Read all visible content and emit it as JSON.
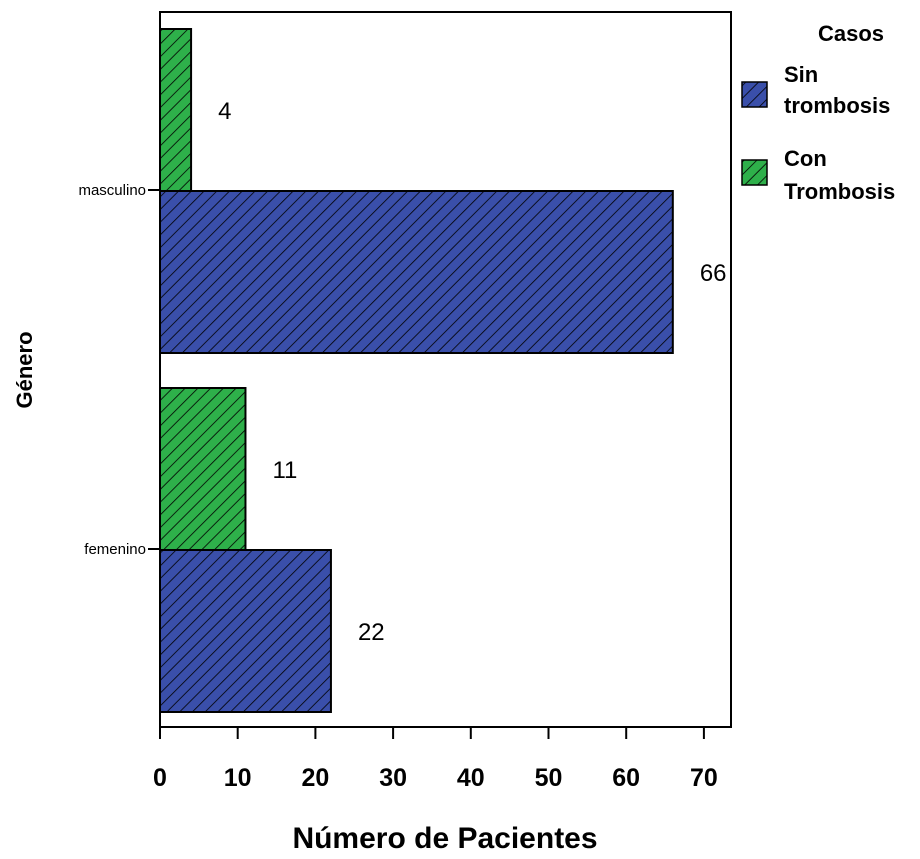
{
  "chart_data": {
    "type": "bar",
    "orientation": "horizontal",
    "xlabel": "Número de Pacientes",
    "ylabel": "Género",
    "xlim": [
      0,
      70
    ],
    "x_ticks": [
      "0",
      "10",
      "20",
      "30",
      "40",
      "50",
      "60",
      "70"
    ],
    "categories": [
      "masculino",
      "femenino"
    ],
    "legend": {
      "title": "Casos",
      "position": "right",
      "entries": [
        {
          "lines": [
            "Sin",
            "trombosis"
          ],
          "color": "#3a4faa"
        },
        {
          "lines": [
            "Con",
            "Trombosis"
          ],
          "color": "#2eb04a"
        }
      ]
    },
    "series": [
      {
        "name": "Con Trombosis",
        "color": "#2eb04a",
        "values": [
          4,
          11
        ],
        "labels": [
          "4",
          "11"
        ]
      },
      {
        "name": "Sin trombosis",
        "color": "#3a4faa",
        "values": [
          66,
          22
        ],
        "labels": [
          "66",
          "22"
        ]
      }
    ],
    "pattern": "diagonal-hatch",
    "grid": false
  }
}
